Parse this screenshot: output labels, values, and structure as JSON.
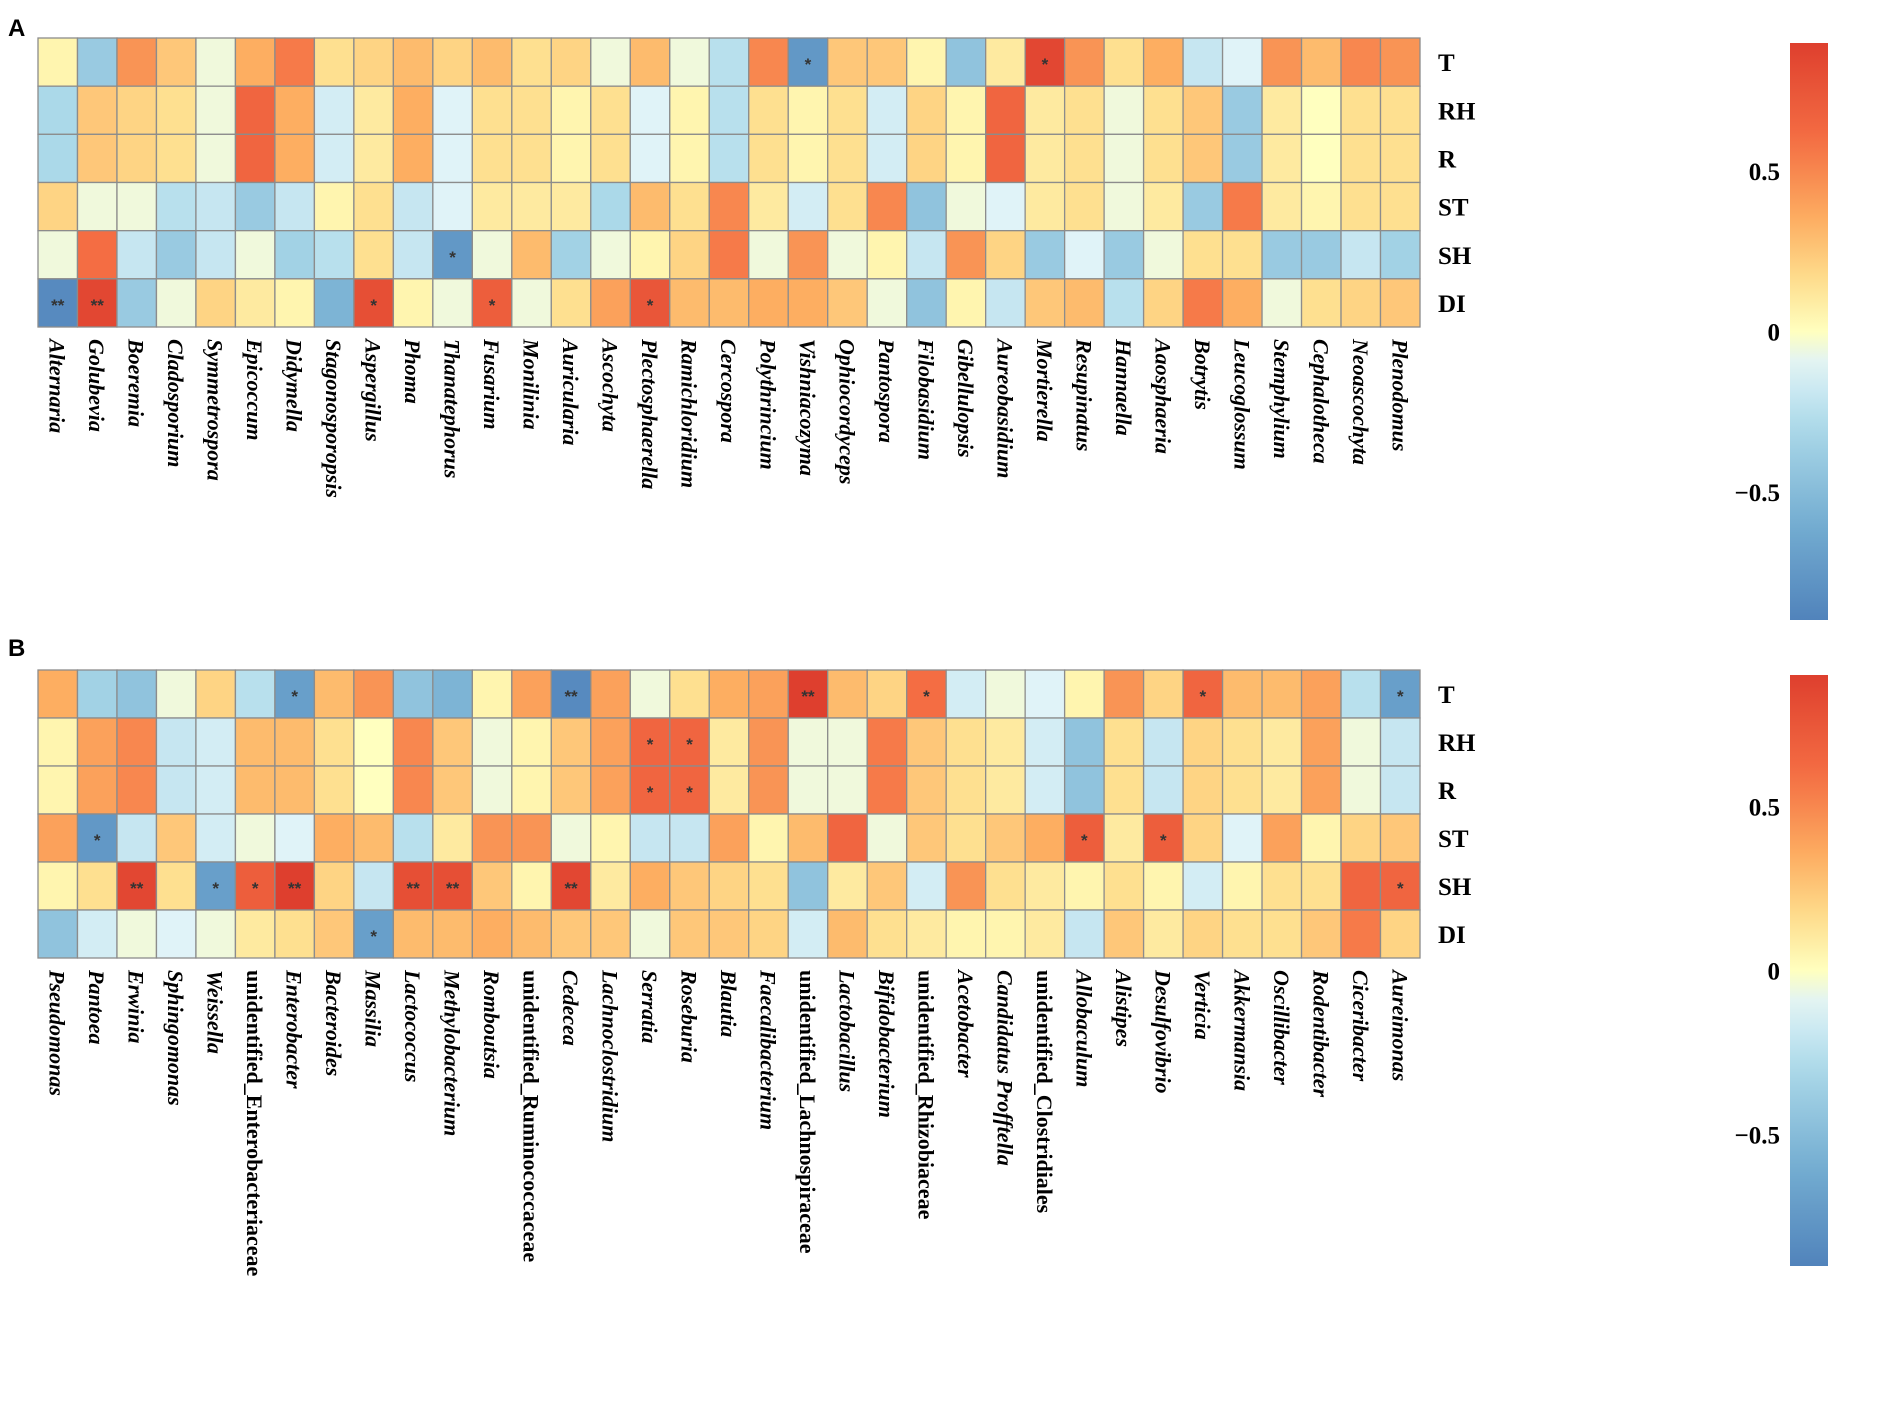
{
  "colors": {
    "low": "#4575b4",
    "mid": "#ffffbf",
    "high": "#d73027",
    "grid": "#8c8c8c"
  },
  "chart_data": [
    {
      "panel": "A",
      "type": "heatmap",
      "rows": [
        "T",
        "RH",
        "R",
        "ST",
        "SH",
        "DI"
      ],
      "columns": [
        "Alternaria",
        "Golubevia",
        "Boeremia",
        "Cladosporium",
        "Symmetrospora",
        "Epicoccum",
        "Didymella",
        "Stagonosporopsis",
        "Aspergillus",
        "Phoma",
        "Thanatephorus",
        "Fusarium",
        "Monilinia",
        "Auricularia",
        "Ascochyta",
        "Plectosphaerella",
        "Ramichloridium",
        "Cercospora",
        "Polythrincium",
        "Vishniacozyma",
        "Ophiocordyceps",
        "Pantospora",
        "Filobasidium",
        "Gibellulopsis",
        "Aureobasidium",
        "Mortierella",
        "Resupinatus",
        "Hannaella",
        "Aaosphaeria",
        "Botrytis",
        "Leucoglossum",
        "Stemphylium",
        "Cephalotheca",
        "Neoascochyta",
        "Plenodomus"
      ],
      "italic_columns": true,
      "values": [
        [
          0.05,
          -0.4,
          0.45,
          0.25,
          -0.05,
          0.35,
          0.55,
          0.15,
          0.2,
          0.3,
          0.2,
          0.3,
          0.15,
          0.2,
          -0.05,
          0.3,
          -0.05,
          -0.25,
          0.5,
          -0.75,
          0.25,
          0.25,
          0.05,
          -0.45,
          0.1,
          0.85,
          0.45,
          0.15,
          0.35,
          -0.2,
          -0.1,
          0.45,
          0.3,
          0.5,
          0.45
        ],
        [
          -0.3,
          0.25,
          0.2,
          0.15,
          -0.05,
          0.65,
          0.35,
          -0.15,
          0.1,
          0.35,
          -0.1,
          0.15,
          0.15,
          0.05,
          0.15,
          -0.1,
          0.05,
          -0.25,
          0.15,
          0.05,
          0.15,
          -0.15,
          0.2,
          0.05,
          0.65,
          0.1,
          0.15,
          -0.05,
          0.15,
          0.25,
          -0.4,
          0.1,
          0.0,
          0.15,
          0.15
        ],
        [
          -0.3,
          0.25,
          0.2,
          0.15,
          -0.05,
          0.65,
          0.35,
          -0.15,
          0.1,
          0.35,
          -0.1,
          0.15,
          0.15,
          0.05,
          0.15,
          -0.1,
          0.05,
          -0.25,
          0.15,
          0.05,
          0.15,
          -0.15,
          0.2,
          0.05,
          0.65,
          0.1,
          0.15,
          -0.05,
          0.15,
          0.25,
          -0.4,
          0.1,
          0.0,
          0.15,
          0.15
        ],
        [
          0.2,
          -0.05,
          -0.05,
          -0.25,
          -0.2,
          -0.4,
          -0.2,
          0.05,
          0.15,
          -0.2,
          -0.1,
          0.1,
          0.1,
          0.1,
          -0.3,
          0.3,
          0.15,
          0.5,
          0.1,
          -0.15,
          0.15,
          0.5,
          -0.45,
          -0.05,
          -0.1,
          0.1,
          0.15,
          -0.05,
          0.1,
          -0.4,
          0.55,
          0.1,
          0.05,
          0.15,
          0.15
        ],
        [
          -0.05,
          0.6,
          -0.2,
          -0.4,
          -0.2,
          -0.05,
          -0.35,
          -0.25,
          0.15,
          -0.2,
          -0.75,
          -0.05,
          0.3,
          -0.35,
          -0.05,
          0.05,
          0.2,
          0.55,
          -0.05,
          0.45,
          -0.05,
          0.05,
          -0.2,
          0.45,
          0.2,
          -0.4,
          -0.1,
          -0.4,
          -0.05,
          0.15,
          0.15,
          -0.4,
          -0.4,
          -0.2,
          -0.35
        ],
        [
          -0.85,
          0.85,
          -0.4,
          -0.05,
          0.2,
          0.1,
          0.05,
          -0.55,
          0.8,
          0.05,
          -0.05,
          0.7,
          -0.05,
          0.15,
          0.4,
          0.75,
          0.3,
          0.3,
          0.35,
          0.35,
          0.25,
          -0.05,
          -0.45,
          0.05,
          -0.2,
          0.25,
          0.3,
          -0.25,
          0.2,
          0.55,
          0.35,
          -0.05,
          0.15,
          0.2,
          0.25
        ]
      ],
      "significance": [
        [
          "",
          "",
          "",
          "",
          "",
          "",
          "",
          "",
          "",
          "",
          "",
          "",
          "",
          "",
          "",
          "",
          "",
          "",
          "",
          "*",
          "",
          "",
          "",
          "",
          "",
          "*",
          "",
          "",
          "",
          "",
          "",
          "",
          "",
          "",
          ""
        ],
        [
          "",
          "",
          "",
          "",
          "",
          "",
          "",
          "",
          "",
          "",
          "",
          "",
          "",
          "",
          "",
          "",
          "",
          "",
          "",
          "",
          "",
          "",
          "",
          "",
          "",
          "",
          "",
          "",
          "",
          "",
          "",
          "",
          "",
          "",
          ""
        ],
        [
          "",
          "",
          "",
          "",
          "",
          "",
          "",
          "",
          "",
          "",
          "",
          "",
          "",
          "",
          "",
          "",
          "",
          "",
          "",
          "",
          "",
          "",
          "",
          "",
          "",
          "",
          "",
          "",
          "",
          "",
          "",
          "",
          "",
          "",
          ""
        ],
        [
          "",
          "",
          "",
          "",
          "",
          "",
          "",
          "",
          "",
          "",
          "",
          "",
          "",
          "",
          "",
          "",
          "",
          "",
          "",
          "",
          "",
          "",
          "",
          "",
          "",
          "",
          "",
          "",
          "",
          "",
          "",
          "",
          "",
          "",
          ""
        ],
        [
          "",
          "",
          "",
          "",
          "",
          "",
          "",
          "",
          "",
          "",
          "*",
          "",
          "",
          "",
          "",
          "",
          "",
          "",
          "",
          "",
          "",
          "",
          "",
          "",
          "",
          "",
          "",
          "",
          "",
          "",
          "",
          "",
          "",
          "",
          ""
        ],
        [
          "**",
          "**",
          "",
          "",
          "",
          "",
          "",
          "",
          "*",
          "",
          "",
          "*",
          "",
          "",
          "",
          "*",
          "",
          "",
          "",
          "",
          "",
          "",
          "",
          "",
          "",
          "",
          "",
          "",
          "",
          "",
          "",
          "",
          "",
          "",
          ""
        ]
      ],
      "legend": {
        "ticks": [
          "0.5",
          "0",
          "−0.5"
        ],
        "tick_values": [
          0.5,
          0,
          -0.5
        ],
        "range": [
          -0.9,
          0.9
        ]
      }
    },
    {
      "panel": "B",
      "type": "heatmap",
      "rows": [
        "T",
        "RH",
        "R",
        "ST",
        "SH",
        "DI"
      ],
      "columns": [
        "Pseudomonas",
        "Pantoea",
        "Erwinia",
        "Sphingomonas",
        "Weissella",
        "unidentified_Enterobacteriaceae",
        "Enterobacter",
        "Bacteroides",
        "Massilia",
        "Lactococcus",
        "Methylobacterium",
        "Romboutsia",
        "unidentified_Ruminococcaceae",
        "Cedecea",
        "Lachnoclostridium",
        "Serratia",
        "Roseburia",
        "Blautia",
        "Faecalibacterium",
        "unidentified_Lachnospiraceae",
        "Lactobacillus",
        "Bifidobacterium",
        "unidentified_Rhizobiaceae",
        "Acetobacter",
        "Candidatus Profftella",
        "unidentified_Clostridiales",
        "Allobaculum",
        "Alistipes",
        "Desulfovibrio",
        "Verticia",
        "Akkermansia",
        "Oscillibacter",
        "Rodentibacter",
        "Ciceribacter",
        "Aureimonas"
      ],
      "italic_columns_flags": [
        true,
        true,
        true,
        true,
        true,
        false,
        true,
        true,
        true,
        true,
        true,
        true,
        false,
        true,
        true,
        true,
        true,
        true,
        true,
        false,
        true,
        true,
        false,
        true,
        true,
        false,
        true,
        true,
        true,
        true,
        true,
        true,
        true,
        true,
        true
      ],
      "values": [
        [
          0.35,
          -0.35,
          -0.45,
          -0.05,
          0.2,
          -0.25,
          -0.7,
          0.3,
          0.45,
          -0.45,
          -0.55,
          0.05,
          0.4,
          -0.85,
          0.4,
          -0.05,
          0.15,
          0.35,
          0.4,
          0.9,
          0.3,
          0.2,
          0.6,
          -0.15,
          -0.05,
          -0.1,
          0.05,
          0.45,
          0.2,
          0.65,
          0.3,
          0.3,
          0.4,
          -0.25,
          -0.7
        ],
        [
          0.05,
          0.4,
          0.5,
          -0.2,
          -0.15,
          0.3,
          0.3,
          0.15,
          0.0,
          0.5,
          0.25,
          -0.05,
          0.05,
          0.25,
          0.4,
          0.65,
          0.65,
          0.1,
          0.45,
          -0.05,
          -0.05,
          0.55,
          0.25,
          0.15,
          0.1,
          -0.15,
          -0.45,
          0.15,
          -0.2,
          0.2,
          0.15,
          0.1,
          0.4,
          -0.05,
          -0.2
        ],
        [
          0.05,
          0.4,
          0.5,
          -0.2,
          -0.15,
          0.3,
          0.3,
          0.15,
          0.0,
          0.5,
          0.25,
          -0.05,
          0.05,
          0.25,
          0.4,
          0.65,
          0.65,
          0.1,
          0.45,
          -0.05,
          -0.05,
          0.55,
          0.25,
          0.15,
          0.1,
          -0.15,
          -0.45,
          0.15,
          -0.2,
          0.2,
          0.15,
          0.1,
          0.4,
          -0.05,
          -0.2
        ],
        [
          0.4,
          -0.75,
          -0.2,
          0.25,
          -0.15,
          -0.05,
          -0.1,
          0.35,
          0.3,
          -0.25,
          0.1,
          0.45,
          0.45,
          -0.05,
          0.05,
          -0.2,
          -0.2,
          0.4,
          0.05,
          0.3,
          0.65,
          -0.05,
          0.25,
          0.15,
          0.25,
          0.35,
          0.7,
          0.1,
          0.7,
          0.2,
          -0.1,
          0.4,
          0.05,
          0.2,
          0.25
        ],
        [
          0.05,
          0.15,
          0.85,
          0.15,
          -0.7,
          0.7,
          0.9,
          0.2,
          -0.2,
          0.8,
          0.8,
          0.25,
          0.05,
          0.85,
          0.1,
          0.35,
          0.25,
          0.2,
          0.15,
          -0.45,
          0.1,
          0.25,
          -0.15,
          0.45,
          0.15,
          0.1,
          0.05,
          0.15,
          0.05,
          -0.15,
          0.05,
          0.15,
          0.15,
          0.65,
          0.65
        ],
        [
          -0.45,
          -0.15,
          -0.05,
          -0.1,
          -0.05,
          0.1,
          0.15,
          0.25,
          -0.7,
          0.3,
          0.3,
          0.35,
          0.3,
          0.25,
          0.25,
          -0.05,
          0.25,
          0.25,
          0.2,
          -0.15,
          0.3,
          0.15,
          0.1,
          0.05,
          0.05,
          0.1,
          -0.2,
          0.25,
          0.1,
          0.2,
          0.15,
          0.15,
          0.25,
          0.55,
          0.2
        ]
      ],
      "significance": [
        [
          "",
          "",
          "",
          "",
          "",
          "",
          "*",
          "",
          "",
          "",
          "",
          "",
          "",
          "**",
          "",
          "",
          "",
          "",
          "",
          "**",
          "",
          "",
          "*",
          "",
          "",
          "",
          "",
          "",
          "",
          "*",
          "",
          "",
          "",
          "",
          "*"
        ],
        [
          "",
          "",
          "",
          "",
          "",
          "",
          "",
          "",
          "",
          "",
          "",
          "",
          "",
          "",
          "",
          "*",
          "*",
          "",
          "",
          "",
          "",
          "",
          "",
          "",
          "",
          "",
          "",
          "",
          "",
          "",
          "",
          "",
          "",
          "",
          ""
        ],
        [
          "",
          "",
          "",
          "",
          "",
          "",
          "",
          "",
          "",
          "",
          "",
          "",
          "",
          "",
          "",
          "*",
          "*",
          "",
          "",
          "",
          "",
          "",
          "",
          "",
          "",
          "",
          "",
          "",
          "",
          "",
          "",
          "",
          "",
          "",
          ""
        ],
        [
          "",
          "*",
          "",
          "",
          "",
          "",
          "",
          "",
          "",
          "",
          "",
          "",
          "",
          "",
          "",
          "",
          "",
          "",
          "",
          "",
          "",
          "",
          "",
          "",
          "",
          "",
          "*",
          "",
          "*",
          "",
          "",
          "",
          "",
          "",
          ""
        ],
        [
          "",
          "",
          "**",
          "",
          "*",
          "*",
          "**",
          "",
          "",
          "**",
          "**",
          "",
          "",
          "**",
          "",
          "",
          "",
          "",
          "",
          "",
          "",
          "",
          "",
          "",
          "",
          "",
          "",
          "",
          "",
          "",
          "",
          "",
          "",
          "",
          "*"
        ],
        [
          "",
          "",
          "",
          "",
          "",
          "",
          "",
          "",
          "*",
          "",
          "",
          "",
          "",
          "",
          "",
          "",
          "",
          "",
          "",
          "",
          "",
          "",
          "",
          "",
          "",
          "",
          "",
          "",
          "",
          "",
          "",
          "",
          "",
          "",
          ""
        ]
      ],
      "legend": {
        "ticks": [
          "0.5",
          "0",
          "−0.5"
        ],
        "tick_values": [
          0.5,
          0,
          -0.5
        ],
        "range": [
          -0.9,
          0.9
        ]
      }
    }
  ]
}
